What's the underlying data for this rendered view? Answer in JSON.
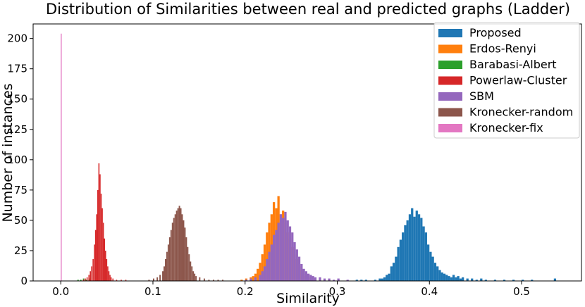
{
  "chart_data": {
    "type": "histogram",
    "title": "Distribution of Similarities between real and predicted graphs (Ladder)",
    "xlabel": "Similarity",
    "ylabel": "Number of instances",
    "xlim": [
      -0.03,
      0.565
    ],
    "ylim": [
      0,
      212
    ],
    "xticks": [
      "0.0",
      "0.1",
      "0.2",
      "0.3",
      "0.4",
      "0.5"
    ],
    "xtick_values": [
      0.0,
      0.1,
      0.2,
      0.3,
      0.4,
      0.5
    ],
    "yticks": [
      "0",
      "25",
      "50",
      "75",
      "100",
      "125",
      "150",
      "175",
      "200"
    ],
    "ytick_values": [
      0,
      25,
      50,
      75,
      100,
      125,
      150,
      175,
      200
    ],
    "grid": false,
    "legend_position": "top-right",
    "series": [
      {
        "name": "Proposed",
        "color": "#1f77b4",
        "bin_width": 0.0025,
        "bins": [
          [
            0.3475,
            2
          ],
          [
            0.35,
            3
          ],
          [
            0.3525,
            5
          ],
          [
            0.355,
            6
          ],
          [
            0.3575,
            12
          ],
          [
            0.36,
            15
          ],
          [
            0.3625,
            20
          ],
          [
            0.365,
            28
          ],
          [
            0.3675,
            34
          ],
          [
            0.37,
            40
          ],
          [
            0.3725,
            46
          ],
          [
            0.375,
            50
          ],
          [
            0.3775,
            55
          ],
          [
            0.38,
            60
          ],
          [
            0.3825,
            53
          ],
          [
            0.385,
            58
          ],
          [
            0.3875,
            55
          ],
          [
            0.39,
            52
          ],
          [
            0.3925,
            45
          ],
          [
            0.395,
            40
          ],
          [
            0.3975,
            30
          ],
          [
            0.4,
            24
          ],
          [
            0.4025,
            20
          ],
          [
            0.405,
            15
          ],
          [
            0.4075,
            12
          ],
          [
            0.41,
            9
          ],
          [
            0.4125,
            7
          ],
          [
            0.415,
            6
          ],
          [
            0.4175,
            5
          ],
          [
            0.42,
            4
          ],
          [
            0.4225,
            3
          ],
          [
            0.425,
            5
          ],
          [
            0.4275,
            3
          ],
          [
            0.43,
            4
          ],
          [
            0.4325,
            2
          ],
          [
            0.435,
            3
          ],
          [
            0.44,
            2
          ],
          [
            0.445,
            2
          ],
          [
            0.45,
            1
          ],
          [
            0.455,
            2
          ],
          [
            0.46,
            1
          ],
          [
            0.47,
            1
          ],
          [
            0.48,
            1
          ],
          [
            0.49,
            1
          ],
          [
            0.5,
            1
          ],
          [
            0.51,
            1
          ],
          [
            0.535,
            2
          ],
          [
            0.34,
            1
          ],
          [
            0.345,
            2
          ],
          [
            0.33,
            1
          ],
          [
            0.325,
            1
          ],
          [
            0.32,
            1
          ]
        ]
      },
      {
        "name": "Erdos-Renyi",
        "color": "#ff7f0e",
        "bin_width": 0.0025,
        "bins": [
          [
            0.195,
            1
          ],
          [
            0.2,
            2
          ],
          [
            0.205,
            3
          ],
          [
            0.2075,
            4
          ],
          [
            0.21,
            6
          ],
          [
            0.2125,
            10
          ],
          [
            0.215,
            15
          ],
          [
            0.2175,
            22
          ],
          [
            0.22,
            30
          ],
          [
            0.2225,
            40
          ],
          [
            0.225,
            48
          ],
          [
            0.2275,
            55
          ],
          [
            0.23,
            65
          ],
          [
            0.2325,
            60
          ],
          [
            0.235,
            70
          ],
          [
            0.2375,
            55
          ],
          [
            0.24,
            58
          ],
          [
            0.2425,
            48
          ],
          [
            0.245,
            40
          ],
          [
            0.2475,
            35
          ],
          [
            0.25,
            28
          ],
          [
            0.2525,
            22
          ],
          [
            0.255,
            18
          ],
          [
            0.2575,
            12
          ],
          [
            0.26,
            9
          ],
          [
            0.2625,
            6
          ],
          [
            0.265,
            4
          ],
          [
            0.27,
            3
          ],
          [
            0.275,
            2
          ],
          [
            0.28,
            1
          ],
          [
            0.29,
            1
          ]
        ]
      },
      {
        "name": "Barabasi-Albert",
        "color": "#2ca02c",
        "bin_width": 0.0015,
        "bins": [
          [
            0.018,
            1
          ],
          [
            0.021,
            1
          ],
          [
            0.024,
            2
          ],
          [
            0.027,
            1
          ],
          [
            0.03,
            2
          ]
        ]
      },
      {
        "name": "Powerlaw-Cluster",
        "color": "#d62728",
        "bin_width": 0.0012,
        "bins": [
          [
            0.024,
            1
          ],
          [
            0.026,
            2
          ],
          [
            0.028,
            3
          ],
          [
            0.03,
            5
          ],
          [
            0.0315,
            8
          ],
          [
            0.033,
            12
          ],
          [
            0.0345,
            18
          ],
          [
            0.036,
            30
          ],
          [
            0.0372,
            42
          ],
          [
            0.0384,
            55
          ],
          [
            0.0396,
            75
          ],
          [
            0.0408,
            97
          ],
          [
            0.042,
            88
          ],
          [
            0.0432,
            72
          ],
          [
            0.0444,
            60
          ],
          [
            0.0456,
            48
          ],
          [
            0.0468,
            35
          ],
          [
            0.048,
            25
          ],
          [
            0.0492,
            18
          ],
          [
            0.0504,
            12
          ],
          [
            0.0516,
            8
          ],
          [
            0.0528,
            5
          ],
          [
            0.054,
            3
          ],
          [
            0.056,
            2
          ],
          [
            0.06,
            1
          ],
          [
            0.065,
            1
          ],
          [
            0.07,
            1
          ]
        ]
      },
      {
        "name": "SBM",
        "color": "#9467bd",
        "bin_width": 0.0025,
        "bins": [
          [
            0.2,
            1
          ],
          [
            0.205,
            2
          ],
          [
            0.21,
            3
          ],
          [
            0.215,
            5
          ],
          [
            0.2175,
            8
          ],
          [
            0.22,
            12
          ],
          [
            0.2225,
            18
          ],
          [
            0.225,
            24
          ],
          [
            0.2275,
            30
          ],
          [
            0.23,
            38
          ],
          [
            0.2325,
            42
          ],
          [
            0.235,
            48
          ],
          [
            0.2375,
            55
          ],
          [
            0.24,
            52
          ],
          [
            0.2425,
            57
          ],
          [
            0.245,
            50
          ],
          [
            0.2475,
            45
          ],
          [
            0.25,
            40
          ],
          [
            0.2525,
            32
          ],
          [
            0.255,
            26
          ],
          [
            0.2575,
            20
          ],
          [
            0.26,
            14
          ],
          [
            0.2625,
            10
          ],
          [
            0.265,
            8
          ],
          [
            0.2675,
            6
          ],
          [
            0.27,
            5
          ],
          [
            0.2725,
            4
          ],
          [
            0.275,
            3
          ],
          [
            0.28,
            3
          ],
          [
            0.285,
            2
          ],
          [
            0.29,
            2
          ],
          [
            0.295,
            1
          ],
          [
            0.3,
            2
          ],
          [
            0.31,
            1
          ]
        ]
      },
      {
        "name": "Kronecker-random",
        "color": "#8c564b",
        "bin_width": 0.0015,
        "bins": [
          [
            0.095,
            1
          ],
          [
            0.1,
            2
          ],
          [
            0.104,
            3
          ],
          [
            0.107,
            5
          ],
          [
            0.11,
            8
          ],
          [
            0.1115,
            12
          ],
          [
            0.113,
            18
          ],
          [
            0.1145,
            24
          ],
          [
            0.116,
            30
          ],
          [
            0.1175,
            36
          ],
          [
            0.119,
            42
          ],
          [
            0.1205,
            48
          ],
          [
            0.122,
            52
          ],
          [
            0.1235,
            55
          ],
          [
            0.125,
            58
          ],
          [
            0.1265,
            60
          ],
          [
            0.128,
            62
          ],
          [
            0.1295,
            60
          ],
          [
            0.131,
            55
          ],
          [
            0.1325,
            50
          ],
          [
            0.134,
            44
          ],
          [
            0.1355,
            36
          ],
          [
            0.137,
            28
          ],
          [
            0.1385,
            22
          ],
          [
            0.14,
            16
          ],
          [
            0.1415,
            12
          ],
          [
            0.143,
            8
          ],
          [
            0.1445,
            6
          ],
          [
            0.146,
            4
          ],
          [
            0.15,
            3
          ],
          [
            0.155,
            2
          ],
          [
            0.16,
            1
          ],
          [
            0.165,
            1
          ],
          [
            0.17,
            1
          ],
          [
            0.175,
            1
          ]
        ]
      },
      {
        "name": "Kronecker-fix",
        "color": "#e377c2",
        "bin_width": 0.001,
        "bins": [
          [
            0.0,
            204
          ]
        ]
      }
    ]
  }
}
